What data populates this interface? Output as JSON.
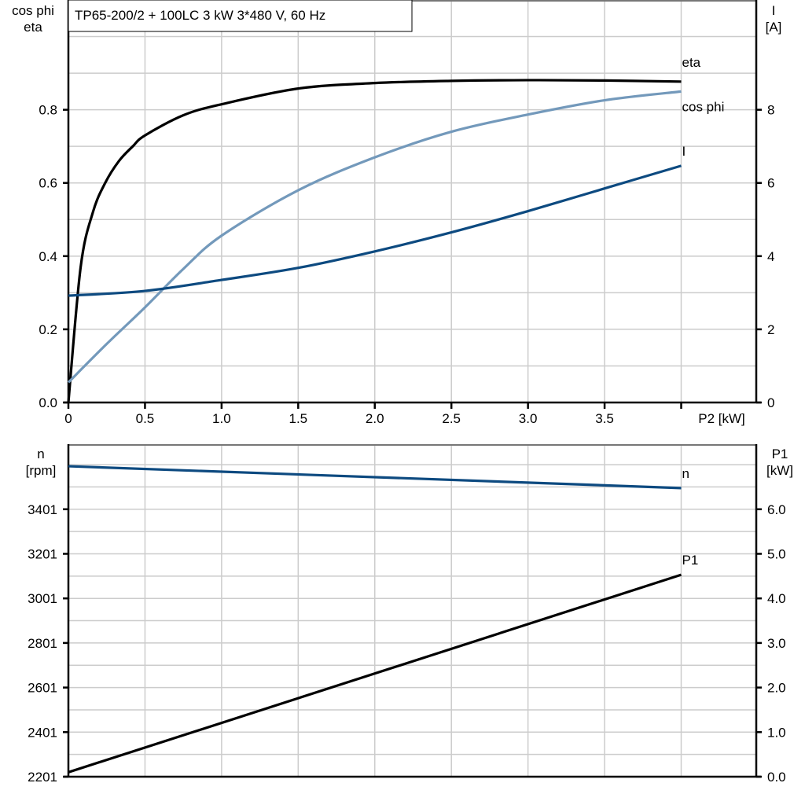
{
  "chart_data": [
    {
      "type": "line",
      "title": "TP65-200/2 + 100LC   3 kW   3*480 V, 60 Hz",
      "xlabel": "P2 [kW]",
      "ylabel_left": [
        "cos phi",
        "eta"
      ],
      "ylabel_right": [
        "I",
        "[A]"
      ],
      "xlim": [
        0,
        4.49
      ],
      "ylim_left": [
        0,
        1.1
      ],
      "ylim_right": [
        0,
        11
      ],
      "x_ticks": [
        "0",
        "0.5",
        "1.0",
        "1.5",
        "2.0",
        "2.5",
        "3.0",
        "3.5"
      ],
      "y_ticks_left": [
        "0.0",
        "0.2",
        "0.4",
        "0.6",
        "0.8"
      ],
      "y_ticks_right": [
        "0",
        "2",
        "4",
        "6",
        "8"
      ],
      "grid": true,
      "series": [
        {
          "name": "eta",
          "axis": "left",
          "color": "#000000",
          "x": [
            0,
            0.08,
            0.16,
            0.24,
            0.33,
            0.42,
            0.5,
            0.75,
            1.0,
            1.5,
            2.0,
            2.5,
            3.0,
            3.5,
            4.0
          ],
          "y": [
            0,
            0.37,
            0.52,
            0.6,
            0.66,
            0.7,
            0.73,
            0.785,
            0.815,
            0.858,
            0.873,
            0.879,
            0.881,
            0.88,
            0.877
          ]
        },
        {
          "name": "cos phi",
          "axis": "left",
          "color": "#7399bb",
          "x": [
            0,
            0.25,
            0.5,
            0.75,
            1.0,
            1.5,
            2.0,
            2.5,
            3.0,
            3.5,
            4.0
          ],
          "y": [
            0.055,
            0.16,
            0.26,
            0.365,
            0.456,
            0.58,
            0.67,
            0.74,
            0.787,
            0.826,
            0.85
          ]
        },
        {
          "name": "I",
          "axis": "right",
          "color": "#0d4a80",
          "x": [
            0,
            0.5,
            1.0,
            1.5,
            2.0,
            2.5,
            3.0,
            3.5,
            4.0
          ],
          "y": [
            2.92,
            3.05,
            3.35,
            3.68,
            4.13,
            4.65,
            5.23,
            5.85,
            6.47
          ]
        }
      ]
    },
    {
      "type": "line",
      "ylabel_left": [
        "n",
        "[rpm]"
      ],
      "ylabel_right": [
        "P1",
        "[kW]"
      ],
      "xlim": [
        0,
        4.49
      ],
      "ylim_left": [
        2201,
        3693
      ],
      "ylim_right": [
        0,
        7.46
      ],
      "y_ticks_left": [
        "2201",
        "2401",
        "2601",
        "2801",
        "3001",
        "3201",
        "3401"
      ],
      "y_ticks_right": [
        "0.0",
        "1.0",
        "2.0",
        "3.0",
        "4.0",
        "5.0",
        "6.0"
      ],
      "grid": true,
      "series": [
        {
          "name": "n",
          "axis": "left",
          "color": "#0d4a80",
          "x": [
            0,
            4.0
          ],
          "y": [
            3594,
            3496
          ]
        },
        {
          "name": "P1",
          "axis": "right",
          "color": "#000000",
          "x": [
            0,
            4.0
          ],
          "y": [
            0.1,
            4.53
          ]
        }
      ]
    }
  ]
}
